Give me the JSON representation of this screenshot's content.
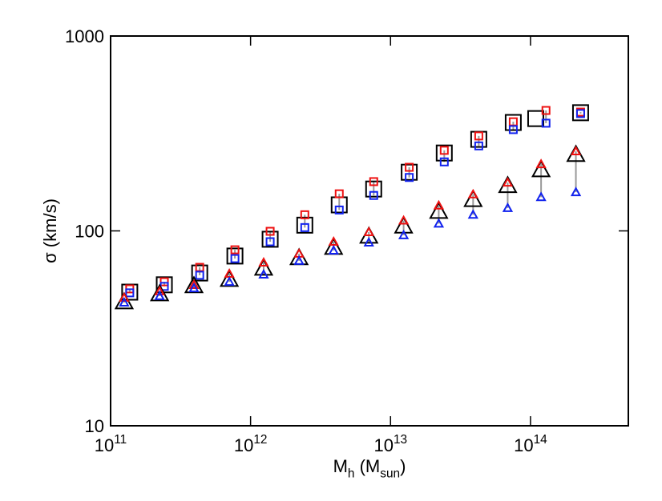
{
  "chart_data": {
    "type": "scatter",
    "xlabel": "M_h (M_sun)",
    "ylabel": "σ (km/s)",
    "xscale": "log",
    "yscale": "log",
    "xlim": [
      100000000000.0,
      500000000000000.0
    ],
    "ylim": [
      10,
      1000
    ],
    "xticks": [
      {
        "value": 100000000000.0,
        "label": "10^11"
      },
      {
        "value": 1000000000000.0,
        "label": "10^12"
      },
      {
        "value": 10000000000000.0,
        "label": "10^13"
      },
      {
        "value": 100000000000000.0,
        "label": "10^14"
      }
    ],
    "yticks": [
      10,
      100,
      1000
    ],
    "links": [
      {
        "from": 1,
        "to": 2,
        "color": "#999999"
      },
      {
        "from": 4,
        "to": 5,
        "color": "#999999"
      }
    ],
    "series": [
      {
        "color": "#000000",
        "marker": "square",
        "marker_size": "large",
        "x": [
          137000000000.0,
          242000000000.0,
          433000000000.0,
          773000000000.0,
          1380000000000.0,
          2440000000000.0,
          4300000000000.0,
          7580000000000.0,
          13600000000000.0,
          24200000000000.0,
          42700000000000.0,
          75300000000000.0,
          109000000000000.0,
          228000000000000.0
        ],
        "values": [
          48.5,
          52.9,
          60.8,
          74.3,
          90.6,
          107,
          136,
          164,
          200,
          251,
          295,
          360,
          377,
          404
        ]
      },
      {
        "color": "#ee1111",
        "marker": "square",
        "marker_size": "small",
        "x": [
          137000000000.0,
          242000000000.0,
          433000000000.0,
          773000000000.0,
          1380000000000.0,
          2440000000000.0,
          4300000000000.0,
          7580000000000.0,
          13600000000000.0,
          24200000000000.0,
          42700000000000.0,
          75300000000000.0,
          129000000000000.0,
          228000000000000.0
        ],
        "values": [
          50.4,
          54.8,
          65.0,
          80.0,
          99.5,
          121,
          155,
          179,
          212,
          259,
          307,
          363,
          415,
          407
        ]
      },
      {
        "color": "#1122ee",
        "marker": "square",
        "marker_size": "small",
        "x": [
          137000000000.0,
          242000000000.0,
          433000000000.0,
          773000000000.0,
          1380000000000.0,
          2440000000000.0,
          4300000000000.0,
          7580000000000.0,
          13600000000000.0,
          24200000000000.0,
          42700000000000.0,
          75300000000000.0,
          129000000000000.0,
          228000000000000.0
        ],
        "values": [
          48.1,
          51.9,
          59.2,
          72.1,
          88.0,
          104,
          128,
          152,
          188,
          226,
          273,
          331,
          357,
          400
        ]
      },
      {
        "color": "#000000",
        "marker": "triangle",
        "marker_size": "large",
        "x": [
          125000000000.0,
          224000000000.0,
          394000000000.0,
          705000000000.0,
          1240000000000.0,
          2220000000000.0,
          3920000000000.0,
          7000000000000.0,
          12400000000000.0,
          22100000000000.0,
          38900000000000.0,
          68700000000000.0,
          119000000000000.0,
          211000000000000.0
        ],
        "values": [
          43.3,
          47.6,
          52.4,
          56.4,
          64.4,
          72.9,
          82.4,
          94.0,
          106,
          126,
          145,
          171,
          206,
          247
        ]
      },
      {
        "color": "#ee1111",
        "marker": "triangle",
        "marker_size": "small",
        "x": [
          125000000000.0,
          224000000000.0,
          394000000000.0,
          705000000000.0,
          1240000000000.0,
          2220000000000.0,
          3920000000000.0,
          7000000000000.0,
          12400000000000.0,
          22100000000000.0,
          38900000000000.0,
          68700000000000.0,
          119000000000000.0,
          211000000000000.0
        ],
        "values": [
          45.4,
          49.0,
          52.8,
          60.3,
          68.8,
          76.4,
          88.0,
          98.6,
          113,
          135,
          154,
          177,
          220,
          256
        ]
      },
      {
        "color": "#1122ee",
        "marker": "triangle",
        "marker_size": "small",
        "x": [
          125000000000.0,
          224000000000.0,
          394000000000.0,
          705000000000.0,
          1240000000000.0,
          2220000000000.0,
          3920000000000.0,
          7000000000000.0,
          12400000000000.0,
          22100000000000.0,
          38900000000000.0,
          68700000000000.0,
          119000000000000.0,
          211000000000000.0
        ],
        "values": [
          42.9,
          46.3,
          50.8,
          54.8,
          59.7,
          70.2,
          79.3,
          87.2,
          95.0,
          109,
          121,
          131,
          149,
          158
        ]
      }
    ]
  }
}
